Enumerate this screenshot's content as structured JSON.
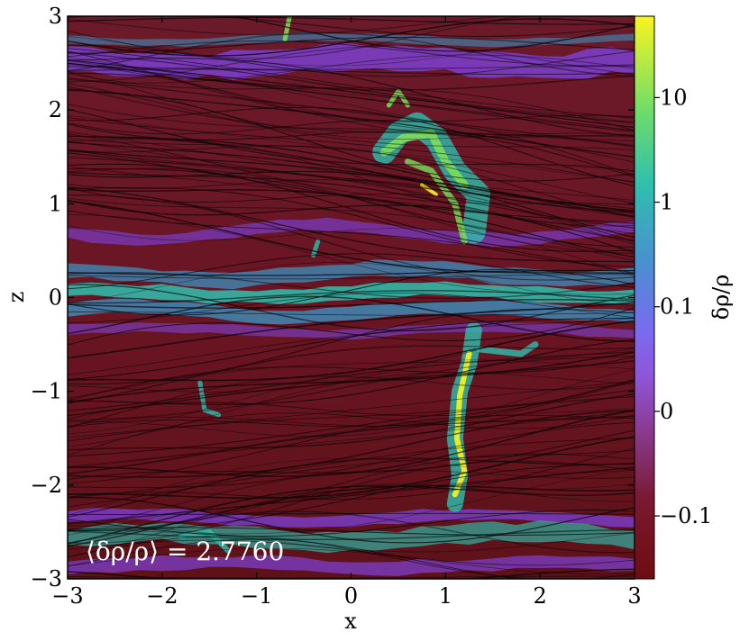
{
  "chart_data": {
    "type": "heatmap",
    "title": "",
    "xlabel": "x",
    "ylabel": "z",
    "xlim": [
      -3,
      3
    ],
    "ylim": [
      -3,
      3
    ],
    "x_ticks": [
      -3,
      -2,
      -1,
      0,
      1,
      2,
      3
    ],
    "y_ticks": [
      -3,
      -2,
      -1,
      0,
      1,
      2,
      3
    ],
    "x_tick_labels": [
      "−3",
      "−2",
      "−1",
      "0",
      "1",
      "2",
      "3"
    ],
    "y_tick_labels": [
      "−3",
      "−2",
      "−1",
      "0",
      "1",
      "2",
      "3"
    ],
    "annotation": "⟨δρ/ρ⟩ = 2.7760",
    "annotation_value": 2.776,
    "overlay": "streamlines",
    "colorbar": {
      "label": "δρ/ρ",
      "scale": "symlog",
      "ticks": [
        {
          "value": 10,
          "label": "10"
        },
        {
          "value": 1,
          "label": "1"
        },
        {
          "value": 0.1,
          "label": "0.1"
        },
        {
          "value": 0,
          "label": "0"
        },
        {
          "value": -0.1,
          "label": "−0.1"
        }
      ],
      "colors": {
        "max": "#f8f51f",
        "high": "#7ce05a",
        "mid_high": "#2fbfae",
        "mid": "#3a98c9",
        "zero": "#7f45e6",
        "low": "#8a3a8e",
        "min": "#6e0d10"
      }
    },
    "features": [
      {
        "name": "upper band",
        "z": 2.5
      },
      {
        "name": "mid-plane layer",
        "z": 0.05
      },
      {
        "name": "lower band",
        "z": -2.45
      },
      {
        "name": "upper filament",
        "x": 0.8,
        "z_range": [
          0.4,
          2.2
        ]
      },
      {
        "name": "lower filament",
        "x": 1.1,
        "z_range": [
          -2.2,
          -0.4
        ]
      }
    ]
  }
}
